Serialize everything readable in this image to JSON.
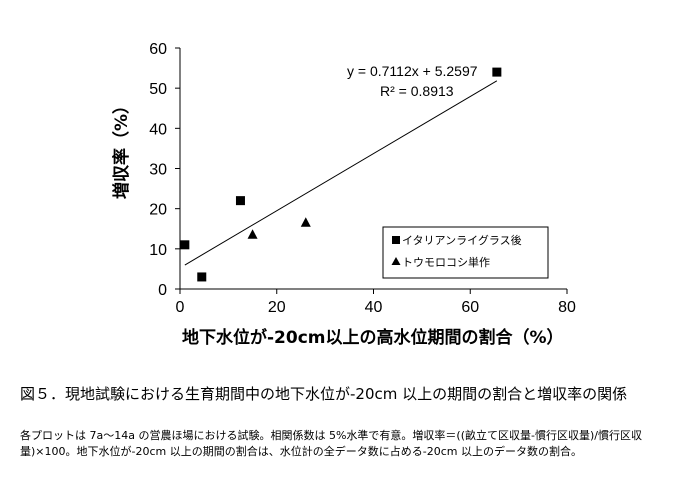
{
  "chart_data": {
    "type": "scatter",
    "xlabel": "地下水位が-20cm以上の高水位期間の割合（%）",
    "ylabel": "増収率（%）",
    "xlim": [
      0,
      80
    ],
    "ylim": [
      0,
      60
    ],
    "x_ticks": [
      0,
      20,
      40,
      60,
      80
    ],
    "y_ticks": [
      0,
      10,
      20,
      30,
      40,
      50,
      60
    ],
    "grid": false,
    "legend_position": "bottom-right",
    "series": [
      {
        "name": "イタリアンライグラス後",
        "marker": "square",
        "points": [
          {
            "x": 1,
            "y": 11
          },
          {
            "x": 4.5,
            "y": 3
          },
          {
            "x": 12.5,
            "y": 22
          },
          {
            "x": 65.5,
            "y": 54
          }
        ]
      },
      {
        "name": "トウモロコシ単作",
        "marker": "triangle",
        "points": [
          {
            "x": 15,
            "y": 13.5
          },
          {
            "x": 26,
            "y": 16.5
          }
        ]
      }
    ],
    "trendline": {
      "slope": 0.7112,
      "intercept": 5.2597,
      "x_range": [
        1,
        65.5
      ],
      "equation": "y = 0.7112x + 5.2597",
      "r_squared": "R² = 0.8913"
    }
  },
  "caption": {
    "title": "図５．現地試験における生育期間中の地下水位が-20cm 以上の期間の割合と増収率の関係",
    "note": "各プロットは 7a～14a の営農ほ場における試験。相関係数は 5%水準で有意。増収率＝((畝立て区収量-慣行区収量)/慣行区収量)×100。地下水位が-20cm 以上の期間の割合は、水位計の全データ数に占める-20cm 以上のデータ数の割合。"
  }
}
